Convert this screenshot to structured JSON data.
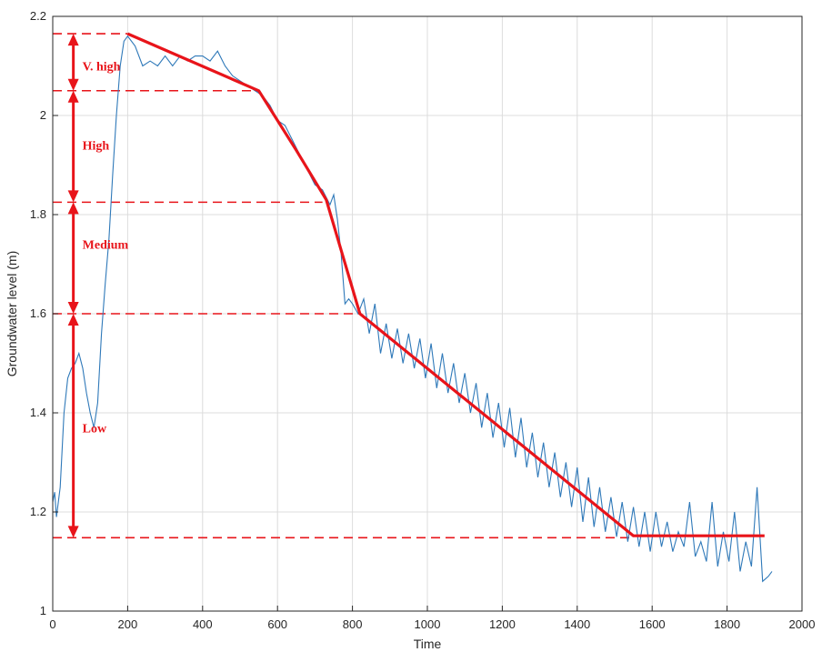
{
  "chart_data": {
    "type": "line",
    "title": "",
    "xlabel": "Time",
    "ylabel": "Groundwater level (m)",
    "xlim": [
      0,
      2000
    ],
    "ylim": [
      1,
      2.2
    ],
    "xticks": [
      0,
      200,
      400,
      600,
      800,
      1000,
      1200,
      1400,
      1600,
      1800,
      2000
    ],
    "yticks": [
      1,
      1.2,
      1.4,
      1.6,
      1.8,
      2,
      2.2
    ],
    "grid": true,
    "series": [
      {
        "color": "#2f79b9",
        "x": [
          0,
          5,
          10,
          20,
          30,
          40,
          50,
          60,
          70,
          80,
          90,
          100,
          110,
          120,
          130,
          140,
          150,
          160,
          170,
          180,
          190,
          200,
          220,
          240,
          260,
          280,
          300,
          320,
          340,
          360,
          380,
          400,
          420,
          440,
          460,
          480,
          500,
          520,
          540,
          560,
          580,
          600,
          620,
          640,
          660,
          680,
          700,
          720,
          740,
          750,
          760,
          770,
          780,
          790,
          800,
          815,
          830,
          845,
          860,
          875,
          890,
          905,
          920,
          935,
          950,
          965,
          980,
          995,
          1010,
          1025,
          1040,
          1055,
          1070,
          1085,
          1100,
          1115,
          1130,
          1145,
          1160,
          1175,
          1190,
          1205,
          1220,
          1235,
          1250,
          1265,
          1280,
          1295,
          1310,
          1325,
          1340,
          1355,
          1370,
          1385,
          1400,
          1415,
          1430,
          1445,
          1460,
          1475,
          1490,
          1505,
          1520,
          1535,
          1550,
          1565,
          1580,
          1595,
          1610,
          1625,
          1640,
          1655,
          1670,
          1685,
          1700,
          1715,
          1730,
          1745,
          1760,
          1775,
          1790,
          1805,
          1820,
          1835,
          1850,
          1865,
          1880,
          1895,
          1910,
          1920
        ],
        "y": [
          1.22,
          1.24,
          1.19,
          1.25,
          1.4,
          1.47,
          1.49,
          1.5,
          1.52,
          1.49,
          1.44,
          1.4,
          1.37,
          1.42,
          1.56,
          1.66,
          1.75,
          1.88,
          2.0,
          2.1,
          2.15,
          2.16,
          2.14,
          2.1,
          2.11,
          2.1,
          2.12,
          2.1,
          2.12,
          2.11,
          2.12,
          2.12,
          2.11,
          2.13,
          2.1,
          2.08,
          2.07,
          2.06,
          2.05,
          2.04,
          2.02,
          1.99,
          1.98,
          1.95,
          1.92,
          1.89,
          1.86,
          1.85,
          1.82,
          1.84,
          1.79,
          1.72,
          1.62,
          1.63,
          1.62,
          1.6,
          1.63,
          1.56,
          1.62,
          1.52,
          1.58,
          1.51,
          1.57,
          1.5,
          1.56,
          1.49,
          1.55,
          1.47,
          1.54,
          1.45,
          1.52,
          1.44,
          1.5,
          1.42,
          1.48,
          1.4,
          1.46,
          1.37,
          1.44,
          1.35,
          1.42,
          1.33,
          1.41,
          1.31,
          1.39,
          1.29,
          1.36,
          1.27,
          1.34,
          1.25,
          1.32,
          1.23,
          1.3,
          1.21,
          1.29,
          1.18,
          1.27,
          1.17,
          1.25,
          1.16,
          1.23,
          1.15,
          1.22,
          1.14,
          1.21,
          1.13,
          1.2,
          1.12,
          1.2,
          1.13,
          1.18,
          1.12,
          1.16,
          1.13,
          1.22,
          1.11,
          1.14,
          1.1,
          1.22,
          1.09,
          1.16,
          1.1,
          1.2,
          1.08,
          1.14,
          1.09,
          1.25,
          1.06,
          1.07,
          1.08
        ]
      }
    ],
    "trend": {
      "color": "#e8141a",
      "x": [
        200,
        550,
        650,
        730,
        820,
        1550,
        1900
      ],
      "y": [
        2.165,
        2.05,
        1.93,
        1.83,
        1.6,
        1.152,
        1.152
      ]
    },
    "thresholds": [
      {
        "y": 2.165,
        "x_end": 200
      },
      {
        "y": 2.05,
        "x_end": 550
      },
      {
        "y": 1.825,
        "x_end": 720
      },
      {
        "y": 1.6,
        "x_end": 820
      },
      {
        "y": 1.148,
        "x_end": 1550
      }
    ],
    "range_arrow_x": 55,
    "bands": [
      {
        "label": "V. high",
        "y": 2.1
      },
      {
        "label": "High",
        "y": 1.94
      },
      {
        "label": "Medium",
        "y": 1.74
      },
      {
        "label": "Low",
        "y": 1.37
      }
    ]
  }
}
